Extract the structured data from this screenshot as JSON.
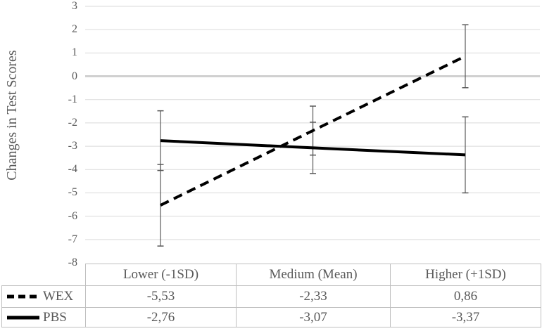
{
  "chart_data": {
    "type": "line",
    "title": "",
    "ylabel": "Changes in Test Scores",
    "xlabel": "",
    "categories": [
      "Lower (-1SD)",
      "Medium (Mean)",
      "Higher (+1SD)"
    ],
    "series": [
      {
        "name": "WEX",
        "line_style": "dashed",
        "color": "#000000",
        "values": [
          -5.53,
          -2.33,
          0.86
        ],
        "display_values": [
          "-5,53",
          "-2,33",
          "0,86"
        ],
        "error_bars": [
          1.75,
          1.05,
          1.35
        ]
      },
      {
        "name": "PBS",
        "line_style": "solid",
        "color": "#000000",
        "values": [
          -2.76,
          -3.07,
          -3.37
        ],
        "display_values": [
          "-2,76",
          "-3,07",
          "-3,37"
        ],
        "error_bars": [
          1.28,
          1.1,
          1.63
        ]
      }
    ],
    "ylim": [
      -8,
      3
    ],
    "yticks": [
      3,
      2,
      1,
      0,
      -1,
      -2,
      -3,
      -4,
      -5,
      -6,
      -7,
      -8
    ],
    "grid": "horizontal",
    "zero_line_emphasized": true,
    "legend_position": "table-left-keys",
    "colors": {
      "gridline": "#dadada",
      "zero_line": "#d0d0d0",
      "error_bar": "#595959",
      "series_line": "#000000",
      "text": "#595959",
      "table_border": "#bfbfbf"
    }
  }
}
